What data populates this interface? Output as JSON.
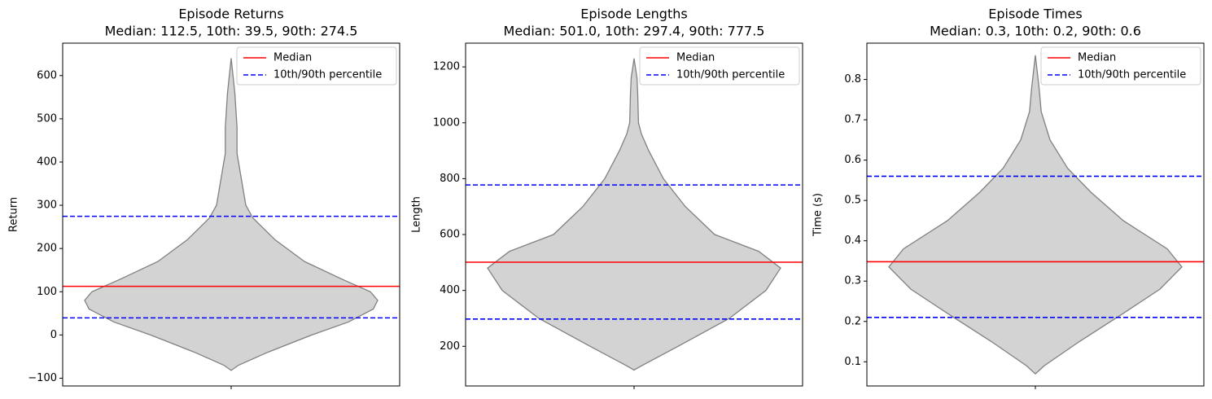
{
  "chart_data": [
    {
      "type": "violin",
      "title": "Episode Returns",
      "subtitle": "Median: 112.5, 10th: 39.5, 90th: 274.5",
      "ylabel": "Return",
      "ylim": [
        -118,
        675
      ],
      "yticks": [
        {
          "value": -100,
          "label": "−100"
        },
        0,
        100,
        200,
        300,
        400,
        500,
        600
      ],
      "violin": {
        "color": "#d3d3d3",
        "edgecolor": "#808080",
        "values": [
          -82,
          -70,
          -40,
          0,
          30,
          60,
          80,
          100,
          130,
          170,
          220,
          270,
          300,
          340,
          380,
          420,
          440,
          480,
          560,
          640
        ],
        "widths": [
          0,
          0.05,
          0.25,
          0.55,
          0.8,
          0.97,
          1.0,
          0.95,
          0.75,
          0.5,
          0.3,
          0.15,
          0.1,
          0.08,
          0.06,
          0.04,
          0.04,
          0.04,
          0.025,
          0
        ]
      },
      "series": [
        {
          "name": "Median",
          "color": "#ff0000",
          "dashed": false,
          "values": [
            112.5
          ]
        },
        {
          "name": "10th/90th percentile",
          "color": "#0000ff",
          "dashed": true,
          "values": [
            39.5,
            274.5
          ]
        }
      ],
      "legend": "upper right"
    },
    {
      "type": "violin",
      "title": "Episode Lengths",
      "subtitle": "Median: 501.0, 10th: 297.4, 90th: 777.5",
      "ylabel": "Length",
      "ylim": [
        58,
        1285
      ],
      "yticks": [
        200,
        400,
        600,
        800,
        1000,
        1200
      ],
      "violin": {
        "color": "#d3d3d3",
        "edgecolor": "#808080",
        "values": [
          115,
          130,
          200,
          300,
          400,
          480,
          540,
          600,
          700,
          800,
          900,
          960,
          1000,
          1100,
          1160,
          1230
        ],
        "widths": [
          0,
          0.05,
          0.3,
          0.65,
          0.9,
          1.0,
          0.85,
          0.55,
          0.35,
          0.2,
          0.1,
          0.05,
          0.03,
          0.025,
          0.02,
          0
        ]
      },
      "series": [
        {
          "name": "Median",
          "color": "#ff0000",
          "dashed": false,
          "values": [
            501.0
          ]
        },
        {
          "name": "10th/90th percentile",
          "color": "#0000ff",
          "dashed": true,
          "values": [
            297.4,
            777.5
          ]
        }
      ],
      "legend": "upper right"
    },
    {
      "type": "violin",
      "title": "Episode Times",
      "subtitle": "Median: 0.3, 10th: 0.2, 90th: 0.6",
      "ylabel": "Time (s)",
      "ylim": [
        0.04,
        0.89
      ],
      "yticks": [
        0.1,
        0.2,
        0.3,
        0.4,
        0.5,
        0.6,
        0.7,
        0.8
      ],
      "violin": {
        "color": "#d3d3d3",
        "edgecolor": "#808080",
        "values": [
          0.07,
          0.09,
          0.15,
          0.22,
          0.28,
          0.335,
          0.38,
          0.45,
          0.52,
          0.58,
          0.65,
          0.72,
          0.78,
          0.86
        ],
        "widths": [
          0,
          0.06,
          0.3,
          0.6,
          0.85,
          1.0,
          0.9,
          0.6,
          0.38,
          0.22,
          0.1,
          0.04,
          0.025,
          0
        ]
      },
      "series": [
        {
          "name": "Median",
          "color": "#ff0000",
          "dashed": false,
          "values": [
            0.348
          ]
        },
        {
          "name": "10th/90th percentile",
          "color": "#0000ff",
          "dashed": true,
          "values": [
            0.21,
            0.56
          ]
        }
      ],
      "legend": "upper right"
    }
  ]
}
